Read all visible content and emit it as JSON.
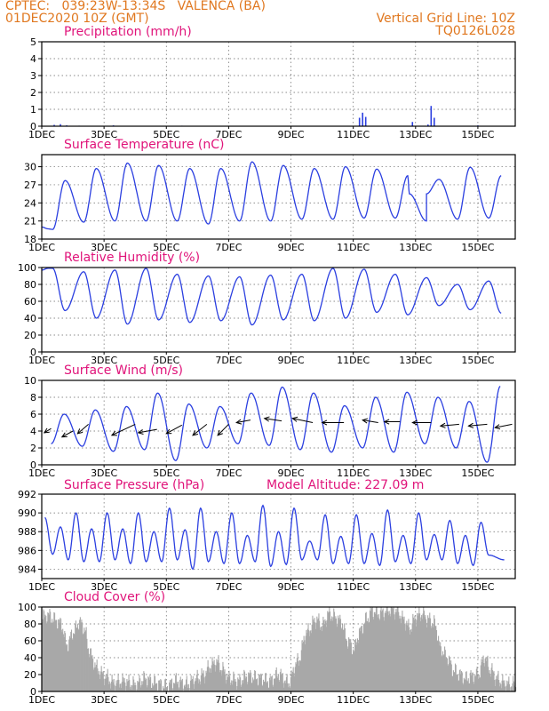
{
  "header": {
    "line1": "CPTEC:   039:23W-13:34S   VALENCA (BA)",
    "line2": "01DEC2020 10Z (GMT)",
    "right1": "Vertical Grid Line: 10Z",
    "right2": "TQ0126L028"
  },
  "colors": {
    "header": "#e07820",
    "title": "#e0147a",
    "line": "#2b3fe0",
    "cloud": "#a8a8a8",
    "grid": "#666666"
  },
  "x_axis": {
    "tick_days": [
      1,
      3,
      5,
      7,
      9,
      11,
      13,
      15
    ],
    "tick_labels": [
      "1DEC",
      "3DEC",
      "5DEC",
      "7DEC",
      "9DEC",
      "11DEC",
      "13DEC",
      "15DEC"
    ],
    "start_day": 1,
    "end_day": 16.2
  },
  "chart_data": [
    {
      "type": "bar",
      "title": "Precipitation (mm/h)",
      "ylim": [
        0,
        5
      ],
      "yticks": [
        0,
        1,
        2,
        3,
        4,
        5
      ],
      "values": [
        [
          1.4,
          0.08
        ],
        [
          1.6,
          0.12
        ],
        [
          1.8,
          0.05
        ],
        [
          2.2,
          0.03
        ],
        [
          3.3,
          0.05
        ],
        [
          5.5,
          0.03
        ],
        [
          11.2,
          0.5
        ],
        [
          11.3,
          0.8
        ],
        [
          11.4,
          0.55
        ],
        [
          12.9,
          0.25
        ],
        [
          13.4,
          0.1
        ],
        [
          13.5,
          1.2
        ],
        [
          13.6,
          0.5
        ],
        [
          15.0,
          0.05
        ]
      ]
    },
    {
      "type": "line",
      "title": "Surface Temperature (nC)",
      "ylim": [
        18,
        32
      ],
      "yticks": [
        18,
        21,
        24,
        27,
        30
      ],
      "minima": [
        19.6,
        20.8,
        21.0,
        21.0,
        21.0,
        20.5,
        21.0,
        21.0,
        21.3,
        21.3,
        21.5,
        21.5,
        21.0,
        21.3,
        21.5
      ],
      "maxima": [
        27.7,
        29.7,
        30.6,
        30.2,
        29.7,
        29.7,
        30.8,
        30.2,
        29.7,
        30.0,
        29.6,
        28.5,
        27.9,
        29.9,
        28.5
      ],
      "extra_points": [
        [
          1.0,
          20.0
        ],
        [
          1.2,
          19.7
        ],
        [
          12.8,
          25.5
        ],
        [
          13.35,
          25.5
        ]
      ]
    },
    {
      "type": "line",
      "title": "Relative Humidity (%)",
      "ylim": [
        0,
        100
      ],
      "yticks": [
        0,
        20,
        40,
        60,
        80,
        100
      ],
      "minima": [
        49,
        40,
        33,
        38,
        35,
        37,
        32,
        38,
        37,
        40,
        47,
        44,
        55,
        50,
        46
      ],
      "maxima": [
        99,
        95,
        97,
        99,
        92,
        90,
        89,
        91,
        92,
        99,
        98,
        92,
        88,
        80,
        84
      ],
      "extra_points": [
        [
          1.0,
          97
        ],
        [
          1.2,
          99
        ]
      ]
    },
    {
      "type": "line",
      "title": "Surface Wind (m/s)",
      "ylim": [
        0,
        10
      ],
      "yticks": [
        0,
        2,
        4,
        6,
        8,
        10
      ],
      "minima": [
        2.5,
        2.2,
        1.6,
        1.8,
        0.5,
        2.0,
        2.5,
        2.3,
        1.8,
        1.5,
        2.0,
        1.5,
        2.5,
        2.0,
        0.3
      ],
      "maxima": [
        6.0,
        6.5,
        6.9,
        8.5,
        7.2,
        6.9,
        8.5,
        9.2,
        8.5,
        7.0,
        8.0,
        8.6,
        8.0,
        7.5,
        9.3
      ],
      "wind_arrows": [
        {
          "x0": 1.3,
          "x1": 1.08,
          "y0": 4.3,
          "y1": 3.8
        },
        {
          "x0": 2.0,
          "x1": 1.65,
          "y0": 4.0,
          "y1": 3.3
        },
        {
          "x0": 2.5,
          "x1": 2.15,
          "y0": 4.8,
          "y1": 3.7
        },
        {
          "x0": 4.0,
          "x1": 3.25,
          "y0": 4.8,
          "y1": 3.5
        },
        {
          "x0": 4.7,
          "x1": 4.1,
          "y0": 4.2,
          "y1": 3.8
        },
        {
          "x0": 5.5,
          "x1": 5.0,
          "y0": 4.7,
          "y1": 3.7
        },
        {
          "x0": 6.3,
          "x1": 5.85,
          "y0": 4.8,
          "y1": 3.5
        },
        {
          "x0": 7.0,
          "x1": 6.65,
          "y0": 4.8,
          "y1": 3.5
        },
        {
          "x0": 7.7,
          "x1": 7.25,
          "y0": 5.3,
          "y1": 5.0
        },
        {
          "x0": 8.7,
          "x1": 8.15,
          "y0": 5.2,
          "y1": 5.5
        },
        {
          "x0": 9.7,
          "x1": 9.05,
          "y0": 5.0,
          "y1": 5.5
        },
        {
          "x0": 10.7,
          "x1": 10.0,
          "y0": 5.0,
          "y1": 5.0
        },
        {
          "x0": 11.8,
          "x1": 11.3,
          "y0": 5.0,
          "y1": 5.3
        },
        {
          "x0": 12.5,
          "x1": 12.0,
          "y0": 5.1,
          "y1": 5.1
        },
        {
          "x0": 13.5,
          "x1": 12.9,
          "y0": 5.0,
          "y1": 5.0
        },
        {
          "x0": 14.4,
          "x1": 13.8,
          "y0": 4.8,
          "y1": 4.6
        },
        {
          "x0": 15.3,
          "x1": 14.7,
          "y0": 4.8,
          "y1": 4.6
        },
        {
          "x0": 16.1,
          "x1": 15.55,
          "y0": 4.8,
          "y1": 4.4
        }
      ]
    },
    {
      "type": "line",
      "title": "Surface Pressure (hPa)",
      "annotation": "Model Altitude: 227.09 m",
      "ylim": [
        983,
        992
      ],
      "yticks": [
        984,
        986,
        988,
        990,
        992
      ],
      "daily_min_times": [
        1.75,
        2.25,
        2.75,
        3.25
      ],
      "minima": [
        985.6,
        985.0,
        984.8,
        984.8,
        985.0,
        984.6,
        984.8,
        984.8,
        985.0,
        984.0,
        984.8,
        984.6,
        984.6,
        984.8,
        984.3,
        984.5,
        985.0,
        985.0,
        984.6,
        984.6,
        984.6,
        984.4,
        984.8,
        984.6,
        985.0,
        985.0,
        984.6,
        984.4,
        985.5,
        985.0,
        984.4
      ],
      "maxima": [
        989.5,
        988.5,
        990.0,
        988.3,
        990.0,
        988.3,
        990.0,
        988.0,
        990.5,
        988.2,
        990.5,
        988.0,
        990.0,
        987.6,
        990.8,
        988.0,
        990.5,
        987.0,
        989.8,
        987.5,
        989.8,
        987.8,
        990.3,
        987.6,
        990.0,
        987.7,
        989.2,
        987.6,
        989.0
      ]
    },
    {
      "type": "area",
      "title": "Cloud Cover (%)",
      "ylim": [
        0,
        100
      ],
      "yticks": [
        0,
        20,
        40,
        60,
        80,
        100
      ],
      "values": [
        [
          1.0,
          88
        ],
        [
          1.2,
          90
        ],
        [
          1.4,
          85
        ],
        [
          1.6,
          80
        ],
        [
          1.8,
          55
        ],
        [
          2.0,
          70
        ],
        [
          2.2,
          82
        ],
        [
          2.35,
          75
        ],
        [
          2.5,
          50
        ],
        [
          2.65,
          35
        ],
        [
          2.8,
          25
        ],
        [
          3.0,
          18
        ],
        [
          3.3,
          10
        ],
        [
          3.6,
          12
        ],
        [
          4.0,
          8
        ],
        [
          4.3,
          15
        ],
        [
          4.6,
          10
        ],
        [
          5.0,
          6
        ],
        [
          5.3,
          12
        ],
        [
          5.6,
          8
        ],
        [
          6.0,
          15
        ],
        [
          6.2,
          20
        ],
        [
          6.4,
          30
        ],
        [
          6.6,
          35
        ],
        [
          6.8,
          25
        ],
        [
          7.0,
          15
        ],
        [
          7.3,
          12
        ],
        [
          7.6,
          18
        ],
        [
          8.0,
          15
        ],
        [
          8.3,
          12
        ],
        [
          8.6,
          20
        ],
        [
          8.9,
          10
        ],
        [
          9.2,
          35
        ],
        [
          9.5,
          70
        ],
        [
          9.8,
          85
        ],
        [
          10.0,
          78
        ],
        [
          10.2,
          92
        ],
        [
          10.4,
          88
        ],
        [
          10.6,
          82
        ],
        [
          10.8,
          60
        ],
        [
          11.0,
          50
        ],
        [
          11.2,
          70
        ],
        [
          11.4,
          85
        ],
        [
          11.6,
          95
        ],
        [
          11.8,
          92
        ],
        [
          12.0,
          94
        ],
        [
          12.2,
          97
        ],
        [
          12.4,
          95
        ],
        [
          12.6,
          85
        ],
        [
          12.8,
          75
        ],
        [
          13.0,
          88
        ],
        [
          13.2,
          92
        ],
        [
          13.4,
          85
        ],
        [
          13.6,
          80
        ],
        [
          13.8,
          50
        ],
        [
          14.0,
          40
        ],
        [
          14.2,
          25
        ],
        [
          14.4,
          20
        ],
        [
          14.6,
          15
        ],
        [
          14.8,
          18
        ],
        [
          15.0,
          20
        ],
        [
          15.2,
          40
        ],
        [
          15.4,
          25
        ],
        [
          15.6,
          15
        ],
        [
          15.8,
          10
        ],
        [
          16.0,
          8
        ],
        [
          16.2,
          8
        ]
      ]
    }
  ]
}
